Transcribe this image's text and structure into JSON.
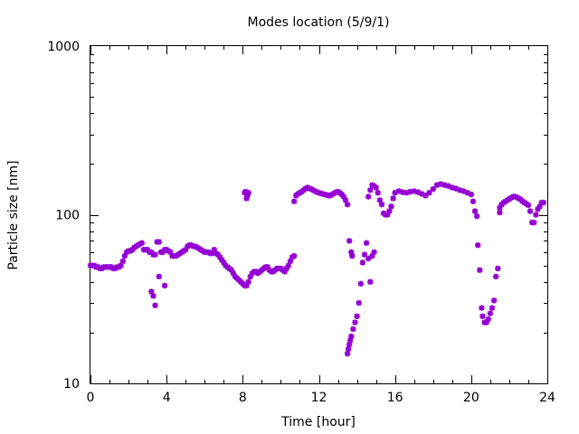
{
  "chart_data": {
    "type": "scatter",
    "title": "Modes location (5/9/1)",
    "xlabel": "Time [hour]",
    "ylabel": "Particle size [nm]",
    "xlim": [
      0,
      24
    ],
    "ylim": [
      10,
      1000
    ],
    "yscale": "log",
    "grid": false,
    "legend": "none",
    "marker": "asterisk",
    "color": "#9400d3",
    "x_ticks": [
      0,
      4,
      8,
      12,
      16,
      20,
      24
    ],
    "y_ticks": [
      10,
      100,
      1000
    ],
    "series": [
      {
        "x": [
          0.0,
          0.1,
          0.2,
          0.3,
          0.4,
          0.5,
          0.6,
          0.7,
          0.8,
          0.9,
          1.0,
          1.1,
          1.2,
          1.3,
          1.4,
          1.5,
          1.6,
          1.7,
          1.8,
          1.9,
          2.0,
          2.1,
          2.2,
          2.3,
          2.4,
          2.5,
          2.6,
          2.7,
          2.8,
          2.9,
          3.0,
          3.1,
          3.2,
          3.3,
          3.4,
          3.5,
          3.6,
          3.7,
          3.8,
          3.9,
          4.0,
          4.1,
          4.2,
          4.3,
          4.4,
          4.5,
          4.6,
          4.7,
          4.8,
          4.9,
          5.0,
          5.1,
          5.2,
          5.3,
          5.4,
          5.5,
          5.6,
          5.7,
          5.8,
          5.9,
          6.0,
          6.1,
          6.2,
          6.3,
          6.4,
          6.5,
          6.6,
          6.7,
          6.8,
          6.9,
          7.0,
          7.1,
          7.2,
          7.3,
          7.4,
          7.5,
          7.6,
          7.7,
          7.8,
          7.9,
          8.0,
          8.1,
          8.2,
          8.3,
          8.4,
          8.5,
          8.6,
          8.7,
          8.8,
          8.9,
          9.0,
          9.1,
          9.2,
          9.3,
          9.4,
          9.5,
          9.6,
          9.7,
          9.8,
          9.9,
          10.0,
          10.1,
          10.2,
          10.3,
          10.4,
          10.5,
          10.6,
          10.7
        ],
        "y": [
          50,
          50,
          50,
          49,
          49,
          48,
          48,
          49,
          49,
          49,
          49,
          49,
          48,
          48,
          49,
          49,
          50,
          53,
          57,
          60,
          61,
          61,
          62,
          64,
          65,
          66,
          67,
          68,
          62,
          62,
          62,
          60,
          60,
          58,
          58,
          69,
          69,
          60,
          60,
          62,
          62,
          61,
          60,
          57,
          57,
          57,
          58,
          59,
          60,
          61,
          62,
          65,
          66,
          66,
          65,
          65,
          64,
          63,
          62,
          61,
          60,
          60,
          60,
          59,
          59,
          62,
          59,
          58,
          56,
          54,
          52,
          50,
          49,
          48,
          47,
          45,
          43,
          42,
          41,
          40,
          39,
          38,
          38,
          40,
          43,
          45,
          46,
          46,
          45,
          46,
          47,
          48,
          49,
          49,
          47,
          46,
          46,
          47,
          48,
          48,
          48,
          47,
          46,
          48,
          50,
          53,
          56,
          57
        ]
      },
      {
        "x": [
          3.2,
          3.3,
          3.4,
          3.6,
          3.9
        ],
        "y": [
          35,
          33,
          29,
          43,
          38
        ]
      },
      {
        "x": [
          8.1,
          8.15,
          8.2,
          8.25,
          8.3
        ],
        "y": [
          135,
          137,
          125,
          130,
          135
        ]
      },
      {
        "x": [
          10.7,
          10.8,
          10.9,
          11.0,
          11.1,
          11.2,
          11.3,
          11.4,
          11.5,
          11.6,
          11.7,
          11.8,
          11.9,
          12.0,
          12.1,
          12.2,
          12.3,
          12.4,
          12.5,
          12.6,
          12.7,
          12.8,
          12.9,
          13.0,
          13.1,
          13.2,
          13.3,
          13.4,
          13.5
        ],
        "y": [
          120,
          130,
          133,
          135,
          137,
          140,
          143,
          145,
          143,
          142,
          140,
          138,
          136,
          135,
          134,
          133,
          132,
          131,
          130,
          130,
          132,
          134,
          136,
          137,
          135,
          132,
          128,
          122,
          115
        ]
      },
      {
        "x": [
          13.5,
          13.55,
          13.6,
          13.65,
          13.7,
          13.8,
          13.9,
          14.0,
          14.1,
          14.2,
          14.3,
          14.4,
          14.5,
          14.6,
          14.7,
          14.8,
          14.9
        ],
        "y": [
          15,
          16,
          17,
          18,
          19,
          21,
          23,
          25,
          30,
          39,
          52,
          58,
          68,
          55,
          40,
          57,
          60
        ]
      },
      {
        "x": [
          13.6,
          13.7,
          13.75
        ],
        "y": [
          70,
          60,
          57
        ]
      },
      {
        "x": [
          14.6,
          14.7,
          14.8,
          14.9,
          15.0,
          15.1,
          15.2,
          15.3,
          15.4,
          15.5,
          15.6,
          15.7,
          15.8,
          15.9,
          16.0,
          16.2,
          16.4,
          16.6,
          16.8,
          17.0,
          17.2,
          17.4,
          17.6,
          17.8,
          18.0,
          18.2,
          18.4,
          18.6,
          18.8,
          19.0,
          19.2,
          19.4,
          19.6,
          19.8,
          20.0,
          20.1,
          20.2,
          20.3
        ],
        "y": [
          128,
          140,
          150,
          148,
          145,
          135,
          122,
          115,
          102,
          100,
          100,
          105,
          112,
          125,
          135,
          138,
          136,
          135,
          137,
          138,
          136,
          133,
          130,
          135,
          142,
          150,
          152,
          150,
          148,
          145,
          143,
          140,
          138,
          135,
          132,
          120,
          105,
          98
        ]
      },
      {
        "x": [
          20.35,
          20.45,
          20.55,
          20.6,
          20.7,
          20.8,
          20.9,
          21.0,
          21.1,
          21.2,
          21.3,
          21.4,
          21.5
        ],
        "y": [
          66,
          47,
          28,
          25,
          23,
          23,
          24,
          26,
          28,
          31,
          43,
          48,
          103
        ]
      },
      {
        "x": [
          21.5,
          21.6,
          21.7,
          21.8,
          21.9,
          22.0,
          22.1,
          22.2,
          22.3,
          22.4,
          22.5,
          22.6,
          22.7,
          22.8,
          22.9,
          23.0,
          23.1,
          23.2,
          23.3,
          23.4,
          23.5,
          23.6,
          23.7,
          23.8
        ],
        "y": [
          110,
          115,
          118,
          120,
          122,
          124,
          126,
          128,
          128,
          127,
          125,
          123,
          120,
          118,
          116,
          114,
          105,
          90,
          90,
          100,
          108,
          112,
          118,
          118
        ]
      }
    ]
  }
}
